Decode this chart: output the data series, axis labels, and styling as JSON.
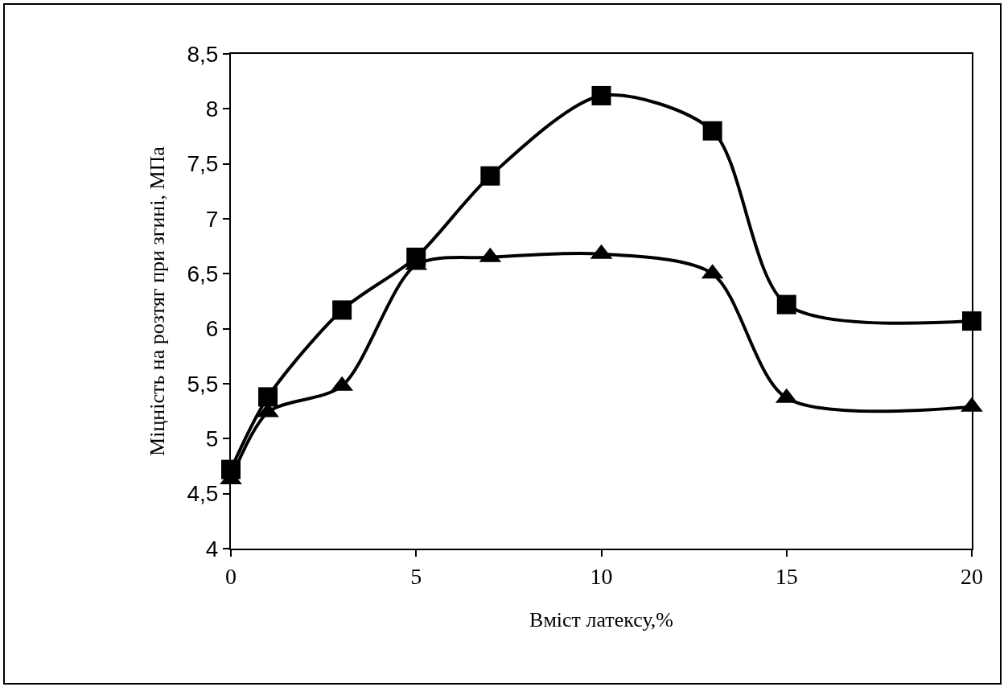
{
  "chart_data": {
    "type": "line",
    "xlabel": "Вміст латексу,%",
    "ylabel": "Міцність на розтяг при згині, МПа",
    "xlim": [
      0,
      20
    ],
    "xticks": [
      0,
      5,
      10,
      15,
      20
    ],
    "ylim": [
      4,
      8.5
    ],
    "yticks": [
      4,
      {
        "value": 4.5,
        "label": "4,5"
      },
      5,
      {
        "value": 5.5,
        "label": "5,5"
      },
      6,
      {
        "value": 6.5,
        "label": "6,5"
      },
      7,
      {
        "value": 7.5,
        "label": "7,5"
      },
      8,
      {
        "value": 8.5,
        "label": "8,5"
      }
    ],
    "grid": false,
    "line_style": "solid",
    "series": [
      {
        "color": "#000000",
        "marker": "square",
        "x": [
          0,
          1,
          3,
          5,
          7,
          10,
          13,
          15,
          20
        ],
        "values": [
          4.72,
          5.38,
          6.17,
          6.65,
          7.39,
          8.12,
          7.8,
          6.22,
          6.07
        ]
      },
      {
        "color": "#000000",
        "marker": "triangle",
        "x": [
          0,
          1,
          3,
          5,
          7,
          10,
          13,
          15,
          20
        ],
        "values": [
          4.63,
          5.24,
          5.48,
          6.58,
          6.65,
          6.68,
          6.5,
          5.37,
          5.29
        ]
      }
    ]
  }
}
